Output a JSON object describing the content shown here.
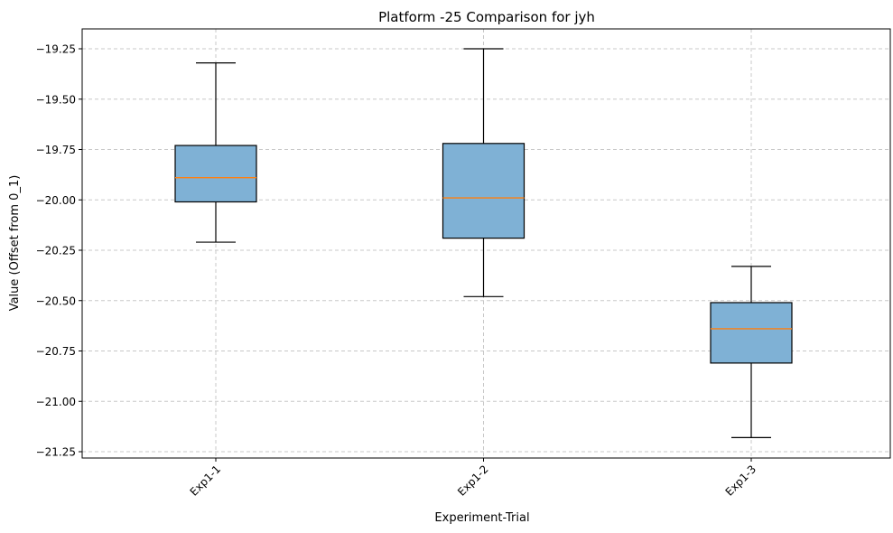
{
  "chart_data": {
    "type": "box",
    "title": "Platform -25 Comparison for jyh",
    "xlabel": "Experiment-Trial",
    "ylabel": "Value (Offset from 0_1)",
    "categories": [
      "Exp1-1",
      "Exp1-2",
      "Exp1-3"
    ],
    "boxes": [
      {
        "category": "Exp1-1",
        "whisker_low": -20.21,
        "q1": -20.01,
        "median": -19.89,
        "q3": -19.73,
        "whisker_high": -19.32
      },
      {
        "category": "Exp1-2",
        "whisker_low": -20.48,
        "q1": -20.19,
        "median": -19.99,
        "q3": -19.72,
        "whisker_high": -19.25
      },
      {
        "category": "Exp1-3",
        "whisker_low": -21.18,
        "q1": -20.81,
        "median": -20.64,
        "q3": -20.51,
        "whisker_high": -20.33
      }
    ],
    "yticks": [
      -19.25,
      -19.5,
      -19.75,
      -20.0,
      -20.25,
      -20.5,
      -20.75,
      -21.0,
      -21.25
    ],
    "ytick_labels": [
      "−19.25",
      "−19.50",
      "−19.75",
      "−20.00",
      "−20.25",
      "−20.50",
      "−20.75",
      "−21.00",
      "−21.25"
    ],
    "ylim": [
      -21.28,
      -19.15
    ],
    "grid": true,
    "colors": {
      "box_fill": "#7fb1d5",
      "median": "#ff7f0e",
      "grid": "#c8c8c8",
      "axis": "#000000"
    }
  }
}
